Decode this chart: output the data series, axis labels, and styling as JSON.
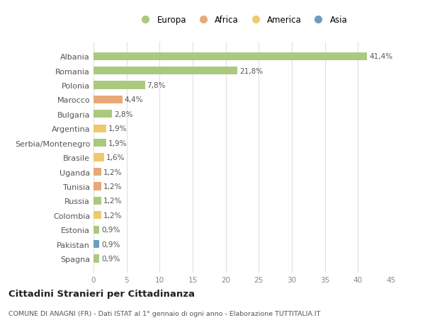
{
  "countries": [
    "Albania",
    "Romania",
    "Polonia",
    "Marocco",
    "Bulgaria",
    "Argentina",
    "Serbia/Montenegro",
    "Brasile",
    "Uganda",
    "Tunisia",
    "Russia",
    "Colombia",
    "Estonia",
    "Pakistan",
    "Spagna"
  ],
  "values": [
    41.4,
    21.8,
    7.8,
    4.4,
    2.8,
    1.9,
    1.9,
    1.6,
    1.2,
    1.2,
    1.2,
    1.2,
    0.9,
    0.9,
    0.9
  ],
  "labels": [
    "41,4%",
    "21,8%",
    "7,8%",
    "4,4%",
    "2,8%",
    "1,9%",
    "1,9%",
    "1,6%",
    "1,2%",
    "1,2%",
    "1,2%",
    "1,2%",
    "0,9%",
    "0,9%",
    "0,9%"
  ],
  "continents": [
    "Europa",
    "Europa",
    "Europa",
    "Africa",
    "Europa",
    "America",
    "Europa",
    "America",
    "Africa",
    "Africa",
    "Europa",
    "America",
    "Europa",
    "Asia",
    "Europa"
  ],
  "continent_colors": {
    "Europa": "#aac97e",
    "Africa": "#e8a878",
    "America": "#f0c96e",
    "Asia": "#6a9ec0"
  },
  "legend_order": [
    "Europa",
    "Africa",
    "America",
    "Asia"
  ],
  "title1": "Cittadini Stranieri per Cittadinanza",
  "title2": "COMUNE DI ANAGNI (FR) - Dati ISTAT al 1° gennaio di ogni anno - Elaborazione TUTTITALIA.IT",
  "xlim": [
    0,
    45
  ],
  "xticks": [
    0,
    5,
    10,
    15,
    20,
    25,
    30,
    35,
    40,
    45
  ],
  "background_color": "#ffffff",
  "grid_color": "#e0e0e0"
}
